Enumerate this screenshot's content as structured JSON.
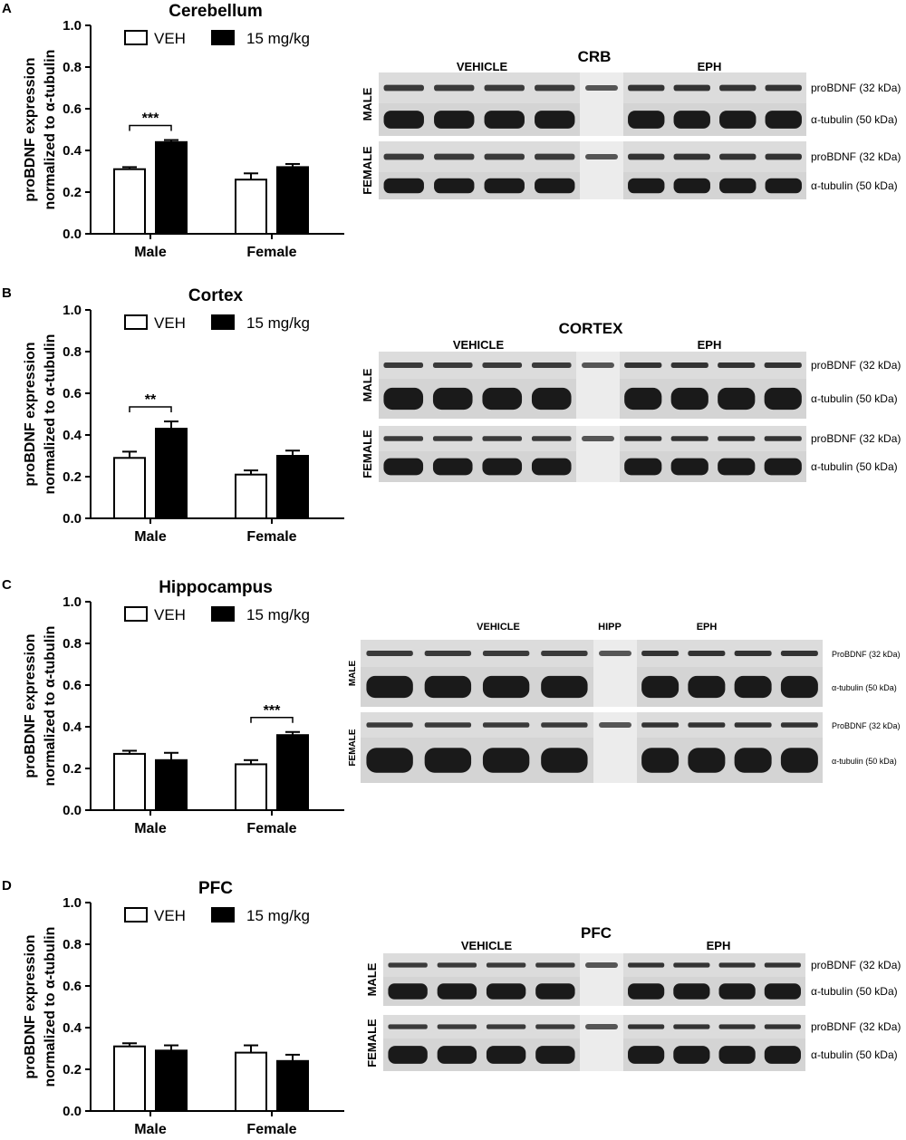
{
  "colors": {
    "veh": "#ffffff",
    "treated": "#000000",
    "axis": "#000000"
  },
  "chart_data": [
    {
      "type": "bar",
      "panel_letter": "A",
      "title": "Cerebellum",
      "ylabel": "proBDNF expression",
      "ylabel2": "normalized to α-tubulin",
      "categories": [
        "Male",
        "Female"
      ],
      "ylim": [
        0,
        1.0
      ],
      "yticks": [
        "0.0",
        "0.2",
        "0.4",
        "0.6",
        "0.8",
        "1.0"
      ],
      "legend": [
        "VEH",
        "15 mg/kg"
      ],
      "series": [
        {
          "name": "VEH",
          "values": [
            0.31,
            0.26
          ],
          "errors": [
            0.01,
            0.03
          ]
        },
        {
          "name": "15 mg/kg",
          "values": [
            0.44,
            0.32
          ],
          "errors": [
            0.01,
            0.015
          ]
        }
      ],
      "significance": [
        {
          "category": "Male",
          "label": "***"
        }
      ],
      "blot": {
        "title": "CRB",
        "group1": "VEHICLE",
        "group2": "EPH",
        "rows": [
          {
            "sex": "MALE",
            "band": "proBDNF (32 kDa)"
          },
          {
            "sex": "MALE",
            "band": "α-tubulin (50 kDa)"
          },
          {
            "sex": "FEMALE",
            "band": "proBDNF (32 kDa)"
          },
          {
            "sex": "FEMALE",
            "band": "α-tubulin (50 kDa)"
          }
        ],
        "sexes": [
          "MALE",
          "FEMALE"
        ]
      }
    },
    {
      "type": "bar",
      "panel_letter": "B",
      "title": "Cortex",
      "ylabel": "proBDNF expression",
      "ylabel2": "normalized to α-tubulin",
      "categories": [
        "Male",
        "Female"
      ],
      "ylim": [
        0,
        1.0
      ],
      "yticks": [
        "0.0",
        "0.2",
        "0.4",
        "0.6",
        "0.8",
        "1.0"
      ],
      "legend": [
        "VEH",
        "15 mg/kg"
      ],
      "series": [
        {
          "name": "VEH",
          "values": [
            0.29,
            0.21
          ],
          "errors": [
            0.03,
            0.02
          ]
        },
        {
          "name": "15 mg/kg",
          "values": [
            0.43,
            0.3
          ],
          "errors": [
            0.035,
            0.025
          ]
        }
      ],
      "significance": [
        {
          "category": "Male",
          "label": "**"
        }
      ],
      "blot": {
        "title": "CORTEX",
        "group1": "VEHICLE",
        "group2": "EPH",
        "rows": [
          {
            "sex": "MALE",
            "band": "proBDNF (32 kDa)"
          },
          {
            "sex": "MALE",
            "band": "α-tubulin (50 kDa)"
          },
          {
            "sex": "FEMALE",
            "band": "proBDNF (32 kDa)"
          },
          {
            "sex": "FEMALE",
            "band": "α-tubulin (50 kDa)"
          }
        ],
        "sexes": [
          "MALE",
          "FEMALE"
        ]
      }
    },
    {
      "type": "bar",
      "panel_letter": "C",
      "title": "Hippocampus",
      "ylabel": "proBDNF expression",
      "ylabel2": "normalized to α-tubulin",
      "categories": [
        "Male",
        "Female"
      ],
      "ylim": [
        0,
        1.0
      ],
      "yticks": [
        "0.0",
        "0.2",
        "0.4",
        "0.6",
        "0.8",
        "1.0"
      ],
      "legend": [
        "VEH",
        "15 mg/kg"
      ],
      "series": [
        {
          "name": "VEH",
          "values": [
            0.27,
            0.22
          ],
          "errors": [
            0.015,
            0.02
          ]
        },
        {
          "name": "15 mg/kg",
          "values": [
            0.24,
            0.36
          ],
          "errors": [
            0.035,
            0.015
          ]
        }
      ],
      "significance": [
        {
          "category": "Female",
          "label": "***"
        }
      ],
      "blot": {
        "title": "HIPP",
        "group1": "VEHICLE",
        "group2": "EPH",
        "rows": [
          {
            "sex": "MALE",
            "band": "ProBDNF (32 kDa)"
          },
          {
            "sex": "MALE",
            "band": "α-tubulin (50 kDa)"
          },
          {
            "sex": "FEMALE",
            "band": "ProBDNF (32 kDa)"
          },
          {
            "sex": "FEMALE",
            "band": "α-tubulin (50 kDa)"
          }
        ],
        "sexes": [
          "MALE",
          "FEMALE"
        ]
      }
    },
    {
      "type": "bar",
      "panel_letter": "D",
      "title": "PFC",
      "ylabel": "proBDNF expression",
      "ylabel2": "normalized to α-tubulin",
      "categories": [
        "Male",
        "Female"
      ],
      "ylim": [
        0,
        1.0
      ],
      "yticks": [
        "0.0",
        "0.2",
        "0.4",
        "0.6",
        "0.8",
        "1.0"
      ],
      "legend": [
        "VEH",
        "15 mg/kg"
      ],
      "series": [
        {
          "name": "VEH",
          "values": [
            0.31,
            0.28
          ],
          "errors": [
            0.015,
            0.035
          ]
        },
        {
          "name": "15 mg/kg",
          "values": [
            0.29,
            0.24
          ],
          "errors": [
            0.025,
            0.03
          ]
        }
      ],
      "significance": [],
      "blot": {
        "title": "PFC",
        "group1": "VEHICLE",
        "group2": "EPH",
        "rows": [
          {
            "sex": "MALE",
            "band": "proBDNF (32 kDa)"
          },
          {
            "sex": "MALE",
            "band": "α-tubulin (50 kDa)"
          },
          {
            "sex": "FEMALE",
            "band": "proBDNF (32 kDa)"
          },
          {
            "sex": "FEMALE",
            "band": "α-tubulin (50 kDa)"
          }
        ],
        "sexes": [
          "MALE",
          "FEMALE"
        ]
      }
    }
  ]
}
